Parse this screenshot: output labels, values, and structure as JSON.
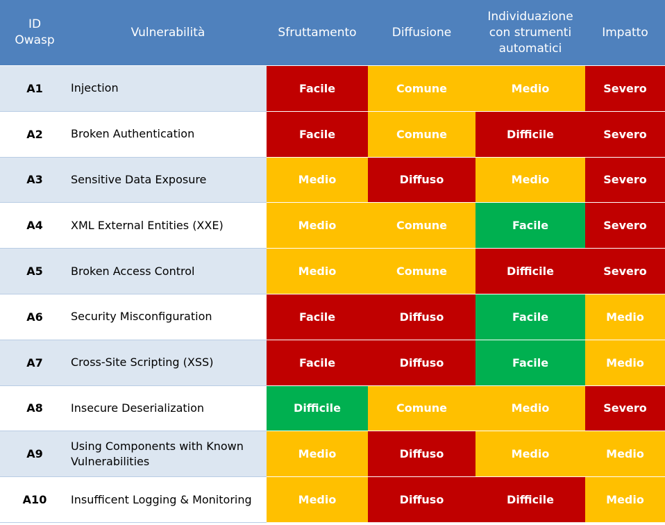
{
  "headers": {
    "id": "ID\nOwasp",
    "id_line1": "ID",
    "id_line2": "Owasp",
    "name": "Vulnerabilità",
    "sfruttamento": "Sfruttamento",
    "diffusione": "Diffusione",
    "individuazione_line1": "Individuazione",
    "individuazione_line2": "con strumenti",
    "individuazione_line3": "automatici",
    "impatto": "Impatto"
  },
  "colors": {
    "header": "#4f81bd",
    "red": "#c00000",
    "yellow": "#ffc000",
    "green": "#00b050",
    "row_alt": "#dce6f1"
  },
  "rows": [
    {
      "id": "A1",
      "name": "Injection",
      "sfruttamento": "Facile",
      "diffusione": "Comune",
      "individuazione": "Medio",
      "impatto": "Severo"
    },
    {
      "id": "A2",
      "name": "Broken Authentication",
      "sfruttamento": "Facile",
      "diffusione": "Comune",
      "individuazione": "Difficile",
      "impatto": "Severo"
    },
    {
      "id": "A3",
      "name": "Sensitive Data Exposure",
      "sfruttamento": "Medio",
      "diffusione": "Diffuso",
      "individuazione": "Medio",
      "impatto": "Severo"
    },
    {
      "id": "A4",
      "name": "XML External Entities (XXE)",
      "sfruttamento": "Medio",
      "diffusione": "Comune",
      "individuazione": "Facile",
      "impatto": "Severo"
    },
    {
      "id": "A5",
      "name": "Broken Access Control",
      "sfruttamento": "Medio",
      "diffusione": "Comune",
      "individuazione": "Difficile",
      "impatto": "Severo"
    },
    {
      "id": "A6",
      "name": "Security Misconfiguration",
      "sfruttamento": "Facile",
      "diffusione": "Diffuso",
      "individuazione": "Facile",
      "impatto": "Medio"
    },
    {
      "id": "A7",
      "name": "Cross-Site Scripting (XSS)",
      "sfruttamento": "Facile",
      "diffusione": "Diffuso",
      "individuazione": "Facile",
      "impatto": "Medio"
    },
    {
      "id": "A8",
      "name": "Insecure Deserialization",
      "sfruttamento": "Difficile",
      "diffusione": "Comune",
      "individuazione": "Medio",
      "impatto": "Severo"
    },
    {
      "id": "A9",
      "name": "Using Components with Known Vulnerabilities",
      "sfruttamento": "Medio",
      "diffusione": "Diffuso",
      "individuazione": "Medio",
      "impatto": "Medio"
    },
    {
      "id": "A10",
      "name": "Insufficent Logging & Monitoring",
      "sfruttamento": "Medio",
      "diffusione": "Diffuso",
      "individuazione": "Difficile",
      "impatto": "Medio"
    }
  ],
  "cell_colors": [
    [
      "red",
      "yellow",
      "yellow",
      "red"
    ],
    [
      "red",
      "yellow",
      "red",
      "red"
    ],
    [
      "yellow",
      "red",
      "yellow",
      "red"
    ],
    [
      "yellow",
      "yellow",
      "green",
      "red"
    ],
    [
      "yellow",
      "yellow",
      "red",
      "red"
    ],
    [
      "red",
      "red",
      "green",
      "yellow"
    ],
    [
      "red",
      "red",
      "green",
      "yellow"
    ],
    [
      "green",
      "yellow",
      "yellow",
      "red"
    ],
    [
      "yellow",
      "red",
      "yellow",
      "yellow"
    ],
    [
      "yellow",
      "red",
      "red",
      "yellow"
    ]
  ]
}
